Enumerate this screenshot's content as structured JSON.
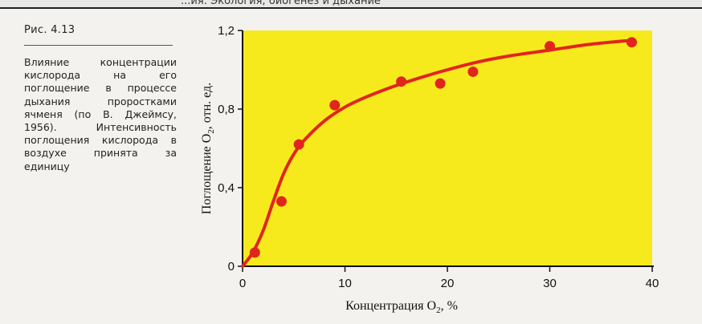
{
  "header": {
    "text": "...ия: Экология, биогенез и дыхание"
  },
  "figure": {
    "label": "Рис. 4.13",
    "caption": "Влияние концентрации кислорода на его поглощение в процессе дыхания проростками ячменя (по В. Джеймсу, 1956). Интенсивность поглощения кислорода в воздухе принята за единицу"
  },
  "colors": {
    "plot_bg": "#f7ea1c",
    "curve": "#e0261c",
    "points": "#e0261c",
    "axes": "#111111"
  },
  "chart_data": {
    "type": "scatter",
    "xlabel": {
      "main": "Концентрация O",
      "sub": "2",
      "unit": ", %"
    },
    "ylabel": {
      "main": "Поглощение O",
      "sub": "2",
      "unit": ", отн. ед."
    },
    "xlim": [
      0,
      40
    ],
    "ylim": [
      0,
      1.2
    ],
    "xticks": [
      0,
      10,
      20,
      30,
      40
    ],
    "xtick_labels": [
      "0",
      "10",
      "20",
      "30",
      "40"
    ],
    "yticks": [
      0,
      0.4,
      0.8,
      1.2
    ],
    "ytick_labels": [
      "0",
      "0,4",
      "0,8",
      "1,2"
    ],
    "grid": false,
    "series": [
      {
        "x": [
          1.2,
          3.8,
          5.5,
          9,
          15.5,
          19.3,
          22.5,
          30,
          38
        ],
        "y": [
          0.07,
          0.33,
          0.62,
          0.82,
          0.94,
          0.93,
          0.99,
          1.12,
          1.14
        ]
      }
    ],
    "fit_curve": {
      "x": [
        0,
        1,
        2,
        3,
        4,
        5,
        6,
        8,
        10,
        12,
        15,
        18,
        20,
        23,
        26,
        30,
        34,
        38
      ],
      "y": [
        0.0,
        0.07,
        0.18,
        0.33,
        0.47,
        0.57,
        0.64,
        0.74,
        0.81,
        0.86,
        0.92,
        0.97,
        1.0,
        1.04,
        1.07,
        1.1,
        1.13,
        1.15
      ]
    }
  }
}
